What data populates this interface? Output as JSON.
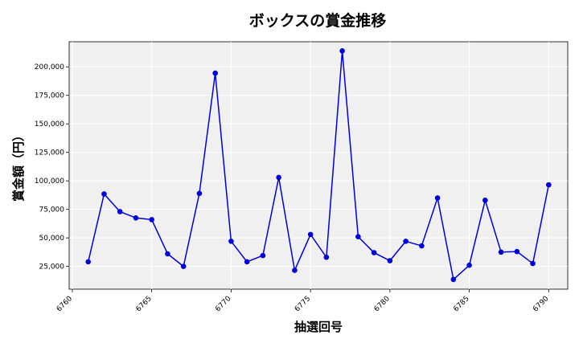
{
  "chart_data": {
    "type": "line",
    "title": "ボックスの賞金推移",
    "xlabel": "抽選回号",
    "ylabel": "賞金額（円）",
    "xlim": [
      6759.8,
      6791.2
    ],
    "ylim": [
      5000,
      222000
    ],
    "x_ticks": [
      6760,
      6765,
      6770,
      6775,
      6780,
      6785,
      6790
    ],
    "y_ticks": [
      25000,
      50000,
      75000,
      100000,
      125000,
      150000,
      175000,
      200000
    ],
    "grid": true,
    "colors": {
      "line": "#0000dd",
      "marker": "#0000dd",
      "plot_bg": "#f0f0f0"
    },
    "series": [
      {
        "x": [
          6761,
          6762,
          6763,
          6764,
          6765,
          6766,
          6767,
          6768,
          6769,
          6770,
          6771,
          6772,
          6773,
          6774,
          6775,
          6776,
          6777,
          6778,
          6779,
          6780,
          6781,
          6782,
          6783,
          6784,
          6785,
          6786,
          6787,
          6788,
          6789,
          6790
        ],
        "values": [
          29000,
          88500,
          73000,
          67500,
          66000,
          36000,
          25000,
          89000,
          194500,
          47000,
          29000,
          34500,
          103000,
          21500,
          53000,
          33000,
          214000,
          51000,
          37000,
          30000,
          47000,
          43000,
          85000,
          13500,
          26000,
          83000,
          37500,
          38000,
          27500,
          96500
        ]
      }
    ]
  }
}
